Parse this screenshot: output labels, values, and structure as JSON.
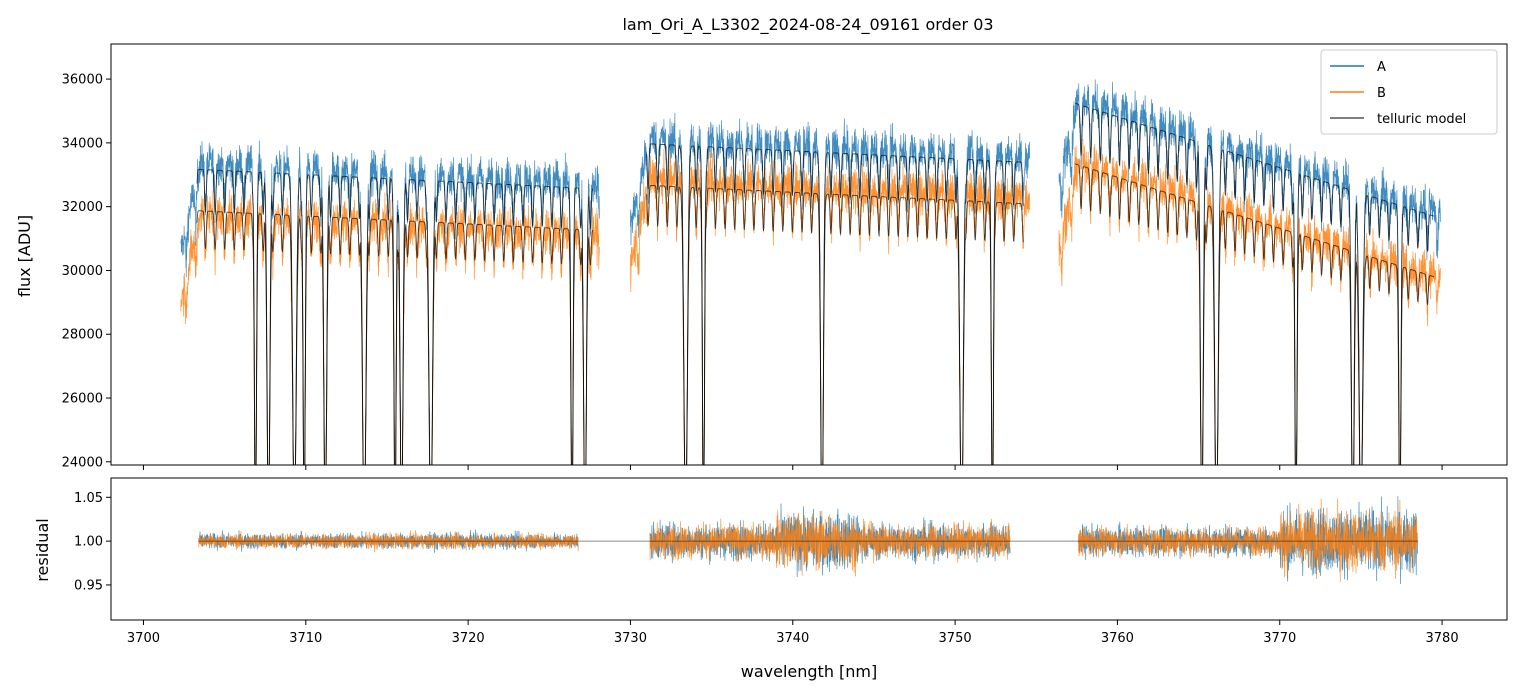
{
  "chart_data": [
    {
      "type": "line",
      "title": "lam_Ori_A_L3302_2024-08-24_09161  order 03",
      "xlabel": "",
      "ylabel": "flux [ADU]",
      "xlim": [
        3698,
        3784
      ],
      "ylim": [
        23900,
        37100
      ],
      "yticks": [
        24000,
        26000,
        28000,
        30000,
        32000,
        34000,
        36000
      ],
      "ytick_labels": [
        "24000",
        "26000",
        "28000",
        "30000",
        "32000",
        "34000",
        "36000"
      ],
      "xticks": [
        3700,
        3710,
        3720,
        3730,
        3740,
        3750,
        3760,
        3770,
        3780
      ],
      "legend": {
        "position": "upper-right",
        "entries": [
          "A",
          "B",
          "telluric model"
        ]
      },
      "segments": [
        {
          "x": [
            3702.3,
            3728.1
          ],
          "A_level": 33400,
          "B_level": 31800,
          "model_A": 33200,
          "model_B": 31900
        },
        {
          "x": [
            3730.0,
            3754.6
          ],
          "A_level": 34200,
          "B_level": 32900,
          "model_A": 34000,
          "model_B": 32700
        },
        {
          "x": [
            3756.4,
            3779.9
          ],
          "A_level": 35600,
          "B_level": 33600,
          "model_A": 35400,
          "model_B": 33500
        }
      ],
      "absorption_lines_nm": [
        3706.9,
        3707.7,
        3709.3,
        3709.9,
        3711.2,
        3713.6,
        3715.5,
        3715.9,
        3717.7,
        3726.4,
        3727.2,
        3733.4,
        3734.5,
        3741.8,
        3750.4,
        3752.3,
        3765.2,
        3766.1,
        3771.0,
        3774.5,
        3775.0,
        3777.4
      ],
      "series": [
        {
          "name": "A",
          "color": "#1f77b4"
        },
        {
          "name": "B",
          "color": "#ff7f0e"
        },
        {
          "name": "telluric model",
          "color": "#000000"
        }
      ]
    },
    {
      "type": "line",
      "title": "",
      "xlabel": "wavelength [nm]",
      "ylabel": "residual",
      "xlim": [
        3698,
        3784
      ],
      "ylim": [
        0.91,
        1.072
      ],
      "yticks": [
        0.95,
        1.0,
        1.05
      ],
      "ytick_labels": [
        "0.95",
        "1.00",
        "1.05"
      ],
      "xticks": [
        3700,
        3710,
        3720,
        3730,
        3740,
        3750,
        3760,
        3770,
        3780
      ],
      "xtick_labels": [
        "3700",
        "3710",
        "3720",
        "3730",
        "3740",
        "3750",
        "3760",
        "3770",
        "3780"
      ],
      "reference_line": 1.0,
      "segments": [
        {
          "x": [
            3703.4,
            3726.8
          ],
          "noise": 0.008
        },
        {
          "x": [
            3731.2,
            3753.4
          ],
          "noise": 0.018
        },
        {
          "x": [
            3757.6,
            3778.5
          ],
          "noise": 0.015
        }
      ],
      "series": [
        {
          "name": "A",
          "color": "#1f77b4"
        },
        {
          "name": "B",
          "color": "#ff7f0e"
        }
      ]
    }
  ]
}
